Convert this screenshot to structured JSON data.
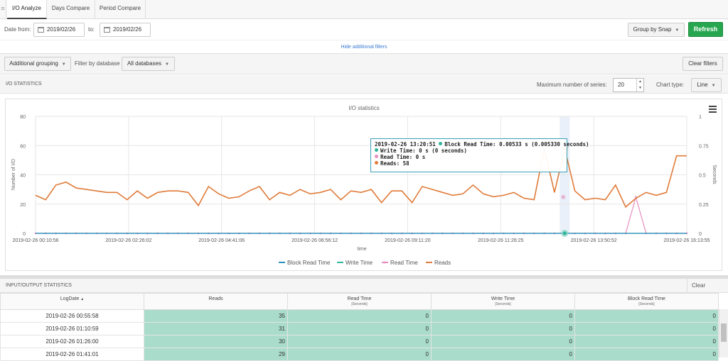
{
  "tabs": [
    {
      "label": "I/O Analyze",
      "active": true
    },
    {
      "label": "Days Compare",
      "active": false
    },
    {
      "label": "Period Compare",
      "active": false
    }
  ],
  "date_filter": {
    "from_label": "Date from:",
    "from_value": "2019/02/26",
    "to_label": "to:",
    "to_value": "2019/02/26"
  },
  "group_by": "Group by Snap",
  "refresh_label": "Refresh",
  "hide_filters_link": "Hide additional filters",
  "filters": {
    "additional_grouping": "Additional grouping",
    "filter_by_db_label": "Filter by database",
    "database_value": "All databases",
    "clear_filters": "Clear filters"
  },
  "io_stats": {
    "heading": "I/O STATISTICS",
    "max_series_label": "Maximum number of series:",
    "max_series_value": "20",
    "chart_type_label": "Chart type:",
    "chart_type_value": "Line"
  },
  "chart_data": {
    "type": "line",
    "title": "I/O statistics",
    "xlabel": "time",
    "ylabel_left": "Number of I/O",
    "ylabel_right": "Seconds",
    "ylim_left": [
      0,
      80
    ],
    "ylim_right": [
      0,
      1
    ],
    "yticks_left": [
      "0",
      "20",
      "40",
      "60",
      "80"
    ],
    "yticks_right": [
      "0",
      "0.25",
      "0.5",
      "0.75",
      "1"
    ],
    "xtick_labels": [
      "2019-02-26 00:10:56",
      "2019-02-26 02:26:02",
      "2019-02-26 04:41:06",
      "2019-02-26 06:56:12",
      "2019-02-26 09:11:20",
      "2019-02-26 11:26:25",
      "2019-02-26 13:50:52",
      "2019-02-26 16:13:55"
    ],
    "grid": true,
    "legend_position": "bottom",
    "series": [
      {
        "name": "Block Read Time",
        "color": "#2a8fbd",
        "axis": "right",
        "values": [
          0,
          0,
          0,
          0,
          0,
          0,
          0,
          0,
          0,
          0,
          0,
          0,
          0,
          0,
          0,
          0,
          0,
          0,
          0,
          0,
          0,
          0,
          0,
          0,
          0,
          0,
          0,
          0,
          0,
          0,
          0,
          0,
          0,
          0,
          0,
          0,
          0,
          0,
          0,
          0,
          0,
          0,
          0,
          0,
          0,
          0,
          0,
          0,
          0,
          0,
          0,
          0,
          0,
          0,
          0,
          0,
          0,
          0,
          0,
          0,
          0,
          0,
          0,
          0,
          0
        ]
      },
      {
        "name": "Write Time",
        "color": "#30b59a",
        "axis": "right",
        "values": [
          0,
          0,
          0,
          0,
          0,
          0,
          0,
          0,
          0,
          0,
          0,
          0,
          0,
          0,
          0,
          0,
          0,
          0,
          0,
          0,
          0,
          0,
          0,
          0,
          0,
          0,
          0,
          0,
          0,
          0,
          0,
          0,
          0,
          0,
          0,
          0,
          0,
          0,
          0,
          0,
          0,
          0,
          0,
          0,
          0,
          0,
          0,
          0,
          0,
          0,
          0,
          0,
          0,
          0,
          0,
          0,
          0,
          0,
          0,
          0,
          0,
          0,
          0,
          0,
          0
        ]
      },
      {
        "name": "Read Time",
        "color": "#e88ec0",
        "axis": "right",
        "values": [
          0,
          0,
          0,
          0,
          0,
          0,
          0,
          0,
          0,
          0,
          0,
          0,
          0,
          0,
          0,
          0,
          0,
          0,
          0,
          0,
          0,
          0,
          0,
          0,
          0,
          0,
          0,
          0,
          0,
          0,
          0,
          0,
          0,
          0,
          0,
          0,
          0,
          0,
          0,
          0,
          0,
          0,
          0,
          0,
          0,
          0,
          0,
          0,
          0,
          0,
          0,
          0,
          0,
          0,
          0,
          0,
          0,
          0,
          0,
          0.31,
          0,
          0,
          0,
          0,
          0
        ]
      },
      {
        "name": "Reads",
        "color": "#e07b39",
        "axis": "left",
        "values": [
          26,
          23,
          33,
          35,
          31,
          30,
          29,
          28,
          28,
          23,
          29,
          24,
          28,
          29,
          29,
          28,
          19,
          32,
          27,
          24,
          25,
          29,
          32,
          23,
          28,
          26,
          30,
          27,
          28,
          30,
          23,
          29,
          28,
          30,
          21,
          29,
          29,
          21,
          32,
          30,
          28,
          26,
          27,
          33,
          27,
          25,
          26,
          28,
          24,
          23,
          58,
          28,
          58,
          29,
          23,
          24,
          23,
          33,
          18,
          24,
          28,
          26,
          28,
          53,
          53
        ]
      }
    ],
    "hover_index": 52
  },
  "tooltip": {
    "line1_time": "2019-02-26 13:20:51",
    "line1_text": "Block Read Time: 0.00533 s (0.005330 seconds)",
    "line2": "Write Time: 0 s (0 seconds)",
    "line3": "Read Time: 0 s",
    "line4": "Reads: 58"
  },
  "table": {
    "heading": "INPUT/OUTPUT STATISTICS",
    "clear_selection": "Clear selection",
    "columns": [
      {
        "label": "LogDate",
        "sub": ""
      },
      {
        "label": "Reads",
        "sub": ""
      },
      {
        "label": "Read Time",
        "sub": "[Seconds]"
      },
      {
        "label": "Write Time",
        "sub": "[Seconds]"
      },
      {
        "label": "Block Read Time",
        "sub": "[Seconds]"
      }
    ],
    "sort_indicator": "▲",
    "rows": [
      [
        "2019-02-26 00:55:58",
        "35",
        "0",
        "0",
        "0"
      ],
      [
        "2019-02-26 01:10:59",
        "31",
        "0",
        "0",
        "0"
      ],
      [
        "2019-02-26 01:26:00",
        "30",
        "0",
        "0",
        "0"
      ],
      [
        "2019-02-26 01:41:01",
        "29",
        "0",
        "0",
        "0"
      ]
    ]
  }
}
